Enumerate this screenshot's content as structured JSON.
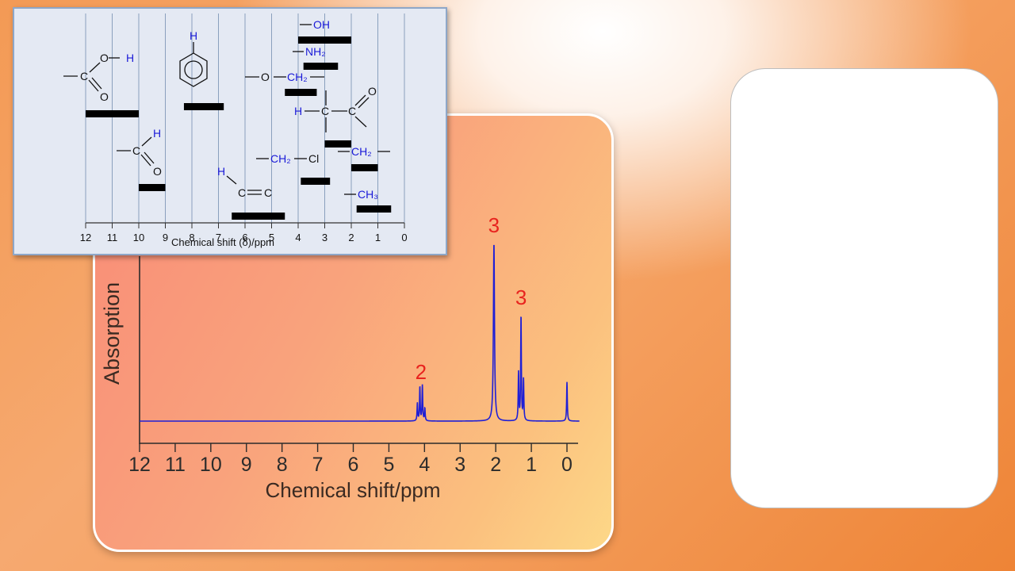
{
  "colors": {
    "spectrum_line": "#1f1fd6",
    "peak_label": "#e8231e",
    "group_blue": "#1a1ad8",
    "panel_bg": "#e4e9f3",
    "panel_border": "#8ea7c8",
    "grid_line": "#8aa0bd"
  },
  "chart_data": [
    {
      "type": "line",
      "title": "",
      "xlabel": "Chemical shift/ppm",
      "ylabel": "Absorption",
      "xlim": [
        12,
        0
      ],
      "xticks": [
        "12",
        "11",
        "10",
        "9",
        "8",
        "7",
        "6",
        "5",
        "4",
        "3",
        "2",
        "1",
        "0"
      ],
      "x_reversed": true,
      "series": [
        {
          "values_description_free": true,
          "peaks": [
            {
              "ppm": 4.2,
              "height": 0.1
            },
            {
              "ppm": 4.13,
              "height": 0.19
            },
            {
              "ppm": 4.06,
              "height": 0.2
            },
            {
              "ppm": 3.99,
              "height": 0.07
            },
            {
              "ppm": 2.05,
              "height": 1.0
            },
            {
              "ppm": 1.36,
              "height": 0.27
            },
            {
              "ppm": 1.29,
              "height": 0.59
            },
            {
              "ppm": 1.22,
              "height": 0.23
            },
            {
              "ppm": 0.0,
              "height": 0.22
            }
          ]
        }
      ],
      "peak_labels": [
        {
          "ppm": 4.1,
          "text": "2"
        },
        {
          "ppm": 2.05,
          "text": "3"
        },
        {
          "ppm": 1.29,
          "text": "3"
        }
      ]
    },
    {
      "type": "bar",
      "title": "",
      "xlabel": "Chemical shift (δ)/ppm",
      "xlim": [
        12,
        0
      ],
      "xticks": [
        "12",
        "11",
        "10",
        "9",
        "8",
        "7",
        "6",
        "5",
        "4",
        "3",
        "2",
        "1",
        "0"
      ],
      "ranges": [
        {
          "group": "carboxylic-acid",
          "from": 12.0,
          "to": 10.0
        },
        {
          "group": "aldehyde",
          "from": 10.0,
          "to": 9.0
        },
        {
          "group": "aromatic",
          "from": 8.3,
          "to": 6.8
        },
        {
          "group": "alkene",
          "from": 6.5,
          "to": 4.5
        },
        {
          "group": "ether",
          "from": 4.5,
          "to": 3.3
        },
        {
          "group": "alkyl-halide",
          "from": 3.9,
          "to": 2.8
        },
        {
          "group": "alcohol",
          "from": 4.0,
          "to": 2.0
        },
        {
          "group": "amine",
          "from": 3.8,
          "to": 2.5
        },
        {
          "group": "alpha-carbonyl",
          "from": 3.0,
          "to": 2.0
        },
        {
          "group": "methylene",
          "from": 2.0,
          "to": 1.0
        },
        {
          "group": "methyl",
          "from": 1.8,
          "to": 0.5
        }
      ]
    }
  ],
  "reference": {
    "acid": {
      "h": "H",
      "o1": "O",
      "o2": "O",
      "c": "C"
    },
    "aldehyde": {
      "h": "H",
      "o": "O",
      "c": "C"
    },
    "aromatic": {
      "h": "H"
    },
    "alkene": {
      "h": "H",
      "c1": "C",
      "c2": "C"
    },
    "ether": {
      "o": "O",
      "ch2": "CH₂"
    },
    "alcohol": {
      "oh": "OH"
    },
    "amine": {
      "nh2": "NH₂"
    },
    "alpha": {
      "h": "H",
      "c1": "C",
      "c2": "C",
      "o": "O"
    },
    "halide": {
      "ch2": "CH₂",
      "cl": "Cl"
    },
    "methylene": {
      "ch2": "CH₂"
    },
    "methyl": {
      "ch3": "CH₃"
    }
  }
}
